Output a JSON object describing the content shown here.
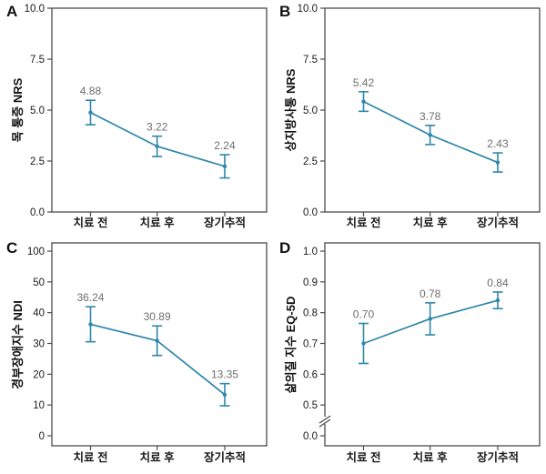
{
  "page": {
    "background": "#ffffff"
  },
  "colors": {
    "line": "#2E86AB",
    "error_bar": "#2E86AB",
    "point": "#2E86AB",
    "value_label": "#6e6e6e",
    "axis_text": "#1a1a1a",
    "border": "#4a4a4a",
    "background": "#ffffff"
  },
  "x_categories": [
    "치료 전",
    "치료 후",
    "장기추적"
  ],
  "chart_data": [
    {
      "panel": "A",
      "type": "line",
      "ylabel": "목 통증 NRS",
      "categories": [
        "치료 전",
        "치료 후",
        "장기추적"
      ],
      "values": [
        4.88,
        3.22,
        2.24
      ],
      "errors": [
        0.6,
        0.5,
        0.57
      ],
      "value_labels": [
        "4.88",
        "3.22",
        "2.24"
      ],
      "ytick_labels": [
        "0.0",
        "2.5",
        "5.0",
        "7.5",
        "10.0"
      ],
      "ytick_values": [
        0,
        2.5,
        5,
        7.5,
        10
      ],
      "ylim": [
        0,
        10
      ],
      "axis_break": false,
      "grid": false
    },
    {
      "panel": "B",
      "type": "line",
      "ylabel": "상지방사통 NRS",
      "categories": [
        "치료 전",
        "치료 후",
        "장기추적"
      ],
      "values": [
        5.42,
        3.78,
        2.43
      ],
      "errors": [
        0.48,
        0.47,
        0.47
      ],
      "value_labels": [
        "5.42",
        "3.78",
        "2.43"
      ],
      "ytick_labels": [
        "0.0",
        "2.5",
        "5.0",
        "7.5",
        "10.0"
      ],
      "ytick_values": [
        0,
        2.5,
        5,
        7.5,
        10
      ],
      "ylim": [
        0,
        10
      ],
      "axis_break": false,
      "grid": false
    },
    {
      "panel": "C",
      "type": "line",
      "ylabel": "경부장애지수 NDI",
      "categories": [
        "치료 전",
        "치료 후",
        "장기추적"
      ],
      "values": [
        36.24,
        30.89,
        13.35
      ],
      "errors": [
        5.7,
        4.8,
        3.6
      ],
      "value_labels": [
        "36.24",
        "30.89",
        "13.35"
      ],
      "ytick_labels": [
        "0",
        "10",
        "20",
        "30",
        "40",
        "50",
        "100"
      ],
      "ytick_values": [
        0,
        10,
        20,
        30,
        40,
        50,
        100
      ],
      "ylim": [
        0,
        100
      ],
      "axis_break": false,
      "grid": false
    },
    {
      "panel": "D",
      "type": "line",
      "ylabel": "삶의질 지수 EQ-5D",
      "categories": [
        "치료 전",
        "치료 후",
        "장기추적"
      ],
      "values": [
        0.7,
        0.78,
        0.84
      ],
      "errors": [
        0.065,
        0.052,
        0.027
      ],
      "value_labels": [
        "0.70",
        "0.78",
        "0.84"
      ],
      "ytick_labels": [
        "0.0",
        "0.5",
        "0.6",
        "0.7",
        "0.8",
        "0.9",
        "1.0"
      ],
      "ytick_values": [
        0,
        0.5,
        0.6,
        0.7,
        0.8,
        0.9,
        1.0
      ],
      "ylim": [
        0,
        1
      ],
      "axis_break": true,
      "grid": false
    }
  ]
}
